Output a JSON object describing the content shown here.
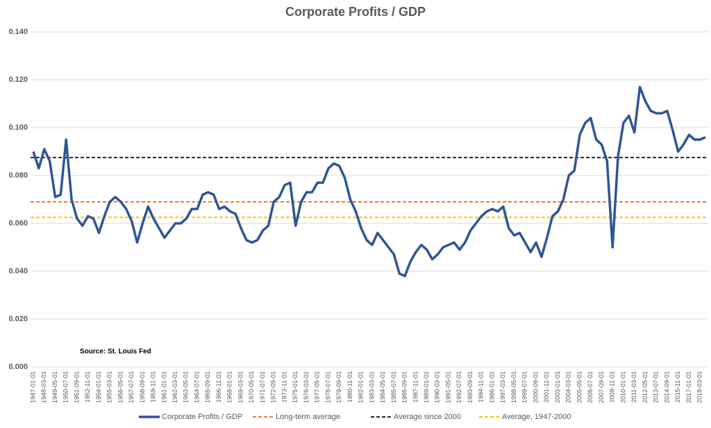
{
  "chart_data": {
    "type": "line",
    "title": "Corporate Profits / GDP",
    "annotation": "Source: St. Louis Fed",
    "categories": [
      "1947-01-01",
      null,
      "1948-03-01",
      null,
      "1949-05-01",
      null,
      "1950-07-01",
      null,
      "1951-09-01",
      null,
      "1952-11-01",
      null,
      "1954-01-01",
      null,
      "1955-03-01",
      null,
      "1956-05-01",
      null,
      "1957-07-01",
      null,
      "1958-09-01",
      null,
      "1959-11-01",
      null,
      "1961-01-01",
      null,
      "1962-03-01",
      null,
      "1963-05-01",
      null,
      "1964-07-01",
      null,
      "1965-09-01",
      null,
      "1966-11-01",
      null,
      "1968-01-01",
      null,
      "1969-03-01",
      null,
      "1970-05-01",
      null,
      "1971-07-01",
      null,
      "1972-09-01",
      null,
      "1973-11-01",
      null,
      "1975-01-01",
      null,
      "1976-03-01",
      null,
      "1977-05-01",
      null,
      "1978-07-01",
      null,
      "1979-09-01",
      null,
      "1980-11-01",
      null,
      "1982-01-01",
      null,
      "1983-03-01",
      null,
      "1984-05-01",
      null,
      "1985-07-01",
      null,
      "1986-09-01",
      null,
      "1987-11-01",
      null,
      "1989-01-01",
      null,
      "1990-03-01",
      null,
      "1991-05-01",
      null,
      "1992-07-01",
      null,
      "1993-09-01",
      null,
      "1994-11-01",
      null,
      "1996-01-01",
      null,
      "1997-03-01",
      null,
      "1998-05-01",
      null,
      "1999-07-01",
      null,
      "2000-09-01",
      null,
      "2001-11-01",
      null,
      "2003-01-01",
      null,
      "2004-03-01",
      null,
      "2005-05-01",
      null,
      "2006-07-01",
      null,
      "2007-09-01",
      null,
      "2008-11-01",
      null,
      "2010-01-01",
      null,
      "2011-03-01",
      null,
      "2012-05-01",
      null,
      "2013-07-01",
      null,
      "2014-09-01",
      null,
      "2015-11-01",
      null,
      "2017-01-01",
      null,
      "2018-03-01",
      null
    ],
    "series": [
      {
        "name": "Corporate Profits / GDP",
        "color": "#2f5597",
        "values": [
          0.09,
          0.083,
          0.091,
          0.086,
          0.071,
          0.072,
          0.095,
          0.07,
          0.062,
          0.059,
          0.063,
          0.062,
          0.056,
          0.063,
          0.069,
          0.071,
          0.069,
          0.066,
          0.061,
          0.052,
          0.06,
          0.067,
          0.062,
          0.058,
          0.054,
          0.057,
          0.06,
          0.06,
          0.062,
          0.066,
          0.066,
          0.072,
          0.073,
          0.072,
          0.066,
          0.067,
          0.065,
          0.064,
          0.058,
          0.053,
          0.052,
          0.053,
          0.057,
          0.059,
          0.069,
          0.071,
          0.076,
          0.077,
          0.059,
          0.069,
          0.073,
          0.073,
          0.077,
          0.077,
          0.083,
          0.085,
          0.084,
          0.079,
          0.07,
          0.065,
          0.058,
          0.053,
          0.051,
          0.056,
          0.053,
          0.05,
          0.047,
          0.039,
          0.038,
          0.044,
          0.048,
          0.051,
          0.049,
          0.045,
          0.047,
          0.05,
          0.051,
          0.052,
          0.049,
          0.052,
          0.057,
          0.06,
          0.063,
          0.065,
          0.066,
          0.065,
          0.067,
          0.058,
          0.055,
          0.056,
          0.052,
          0.048,
          0.052,
          0.046,
          0.054,
          0.063,
          0.065,
          0.07,
          0.08,
          0.082,
          0.097,
          0.102,
          0.104,
          0.095,
          0.093,
          0.086,
          0.05,
          0.088,
          0.102,
          0.105,
          0.098,
          0.117,
          0.111,
          0.107,
          0.106,
          0.106,
          0.107,
          0.099,
          0.09,
          0.093,
          0.097,
          0.095,
          0.095,
          0.096
        ]
      }
    ],
    "reference_lines": [
      {
        "name": "Long-term average",
        "color": "#ed7d31",
        "value": 0.069
      },
      {
        "name": "Average since 2000",
        "color": "#262626",
        "value": 0.0875
      },
      {
        "name": "Average, 1947-2000",
        "color": "#ffc000",
        "value": 0.0625
      }
    ],
    "ylim": [
      0,
      0.14
    ],
    "yticks": [
      {
        "value": 0,
        "label": "0.000"
      },
      {
        "value": 0.02,
        "label": "0.020"
      },
      {
        "value": 0.04,
        "label": "0.040"
      },
      {
        "value": 0.06,
        "label": "0.060"
      },
      {
        "value": 0.08,
        "label": "0.080"
      },
      {
        "value": 0.1,
        "label": "0.100"
      },
      {
        "value": 0.12,
        "label": "0.120"
      },
      {
        "value": 0.14,
        "label": "0.140"
      }
    ],
    "grid": true,
    "legend": "bottom"
  }
}
